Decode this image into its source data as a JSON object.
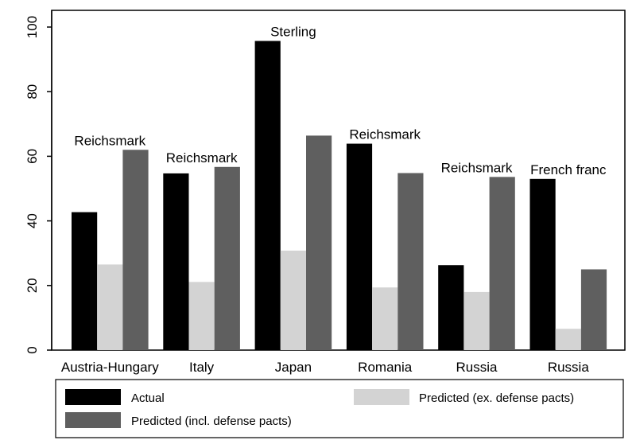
{
  "chart_data": {
    "type": "bar",
    "title": "",
    "xlabel": "",
    "ylabel": "",
    "ylim": [
      0,
      100
    ],
    "yticks": [
      0,
      20,
      40,
      60,
      80,
      100
    ],
    "ytick_labels": [
      "0",
      "20",
      "40",
      "60",
      "80",
      "100"
    ],
    "grid": false,
    "legend_position": "bottom",
    "categories": [
      "Austria-Hungary",
      "Italy",
      "Japan",
      "Romania",
      "Russia",
      "Russia"
    ],
    "annotations": [
      "Reichsmark",
      "Reichsmark",
      "Sterling",
      "Reichsmark",
      "Reichsmark",
      "French franc"
    ],
    "series": [
      {
        "name": "Actual",
        "color": "#000000",
        "values": [
          42.7,
          54.7,
          95.7,
          63.9,
          26.3,
          53.0
        ]
      },
      {
        "name": "Predicted (ex. defense pacts)",
        "color": "#d3d3d3",
        "values": [
          26.5,
          21.1,
          30.8,
          19.4,
          18.0,
          6.6
        ]
      },
      {
        "name": "Predicted (incl. defense pacts)",
        "color": "#5f5f5f",
        "values": [
          62.0,
          56.7,
          66.4,
          54.8,
          53.6,
          25.0
        ]
      }
    ]
  }
}
